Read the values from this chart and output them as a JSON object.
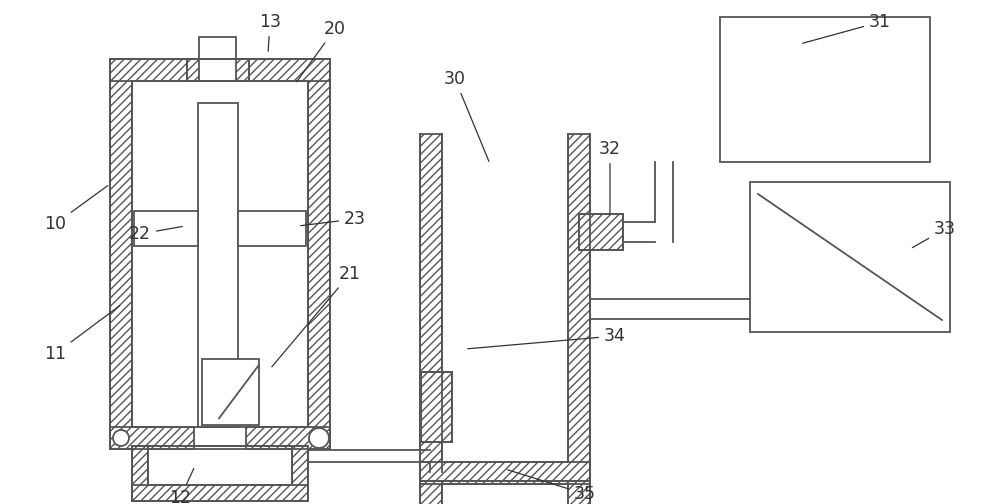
{
  "background_color": "#ffffff",
  "line_color": "#555555",
  "lw": 1.3,
  "hatch": "////",
  "label_fontsize": 12.5
}
